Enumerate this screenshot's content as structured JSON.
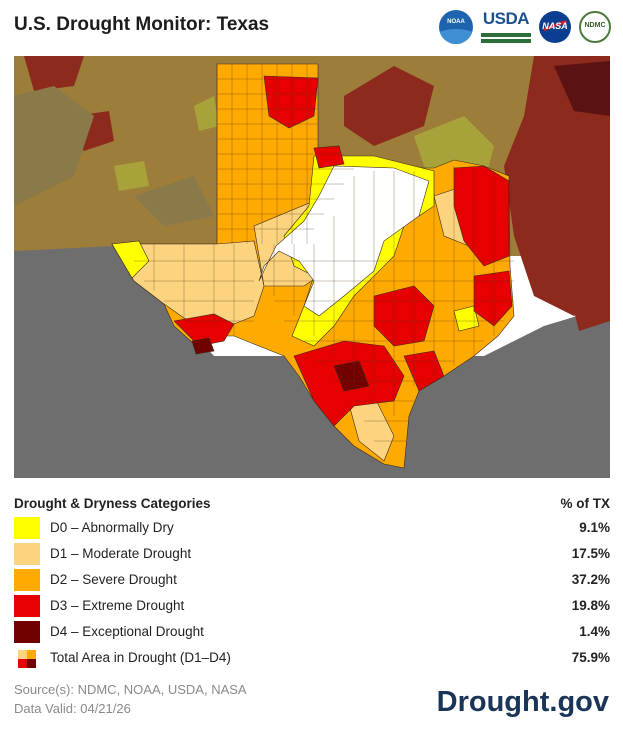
{
  "header": {
    "title": "U.S. Drought Monitor: Texas",
    "logos": [
      {
        "name": "noaa-logo",
        "text": "NOAA"
      },
      {
        "name": "usda-logo",
        "text": "USDA"
      },
      {
        "name": "nasa-logo",
        "text": "NASA"
      },
      {
        "name": "ndmc-logo",
        "text": "NDMC"
      }
    ]
  },
  "map": {
    "colors": {
      "none": "#ffffff",
      "d0": "#ffff00",
      "d1": "#fcd37f",
      "d2": "#ffaa00",
      "d3": "#e60000",
      "d4": "#730000",
      "neighbor_none": "#8a7a4a",
      "neighbor_d0": "#a8a23a",
      "neighbor_d1": "#9c7e3a",
      "neighbor_d2": "#9c6a1e",
      "neighbor_d3": "#8c2a1e",
      "neighbor_d4": "#5a1212",
      "mexico_gulf": "#6e6e6e"
    }
  },
  "legend": {
    "heading": "Drought & Dryness Categories",
    "pct_heading": "% of TX",
    "items": [
      {
        "label": "D0 – Abnormally Dry",
        "value": "9.1%",
        "color": "#ffff00"
      },
      {
        "label": "D1 – Moderate Drought",
        "value": "17.5%",
        "color": "#fcd37f"
      },
      {
        "label": "D2 – Severe Drought",
        "value": "37.2%",
        "color": "#ffaa00"
      },
      {
        "label": "D3 – Extreme Drought",
        "value": "19.8%",
        "color": "#e60000"
      },
      {
        "label": "D4 – Exceptional Drought",
        "value": "1.4%",
        "color": "#730000"
      }
    ],
    "total": {
      "label": "Total Area in Drought (D1–D4)",
      "value": "75.9%"
    }
  },
  "footer": {
    "source": "Source(s): NDMC, NOAA, USDA, NASA",
    "valid": "Data Valid: 04/21/26",
    "brand": "Drought.gov"
  }
}
